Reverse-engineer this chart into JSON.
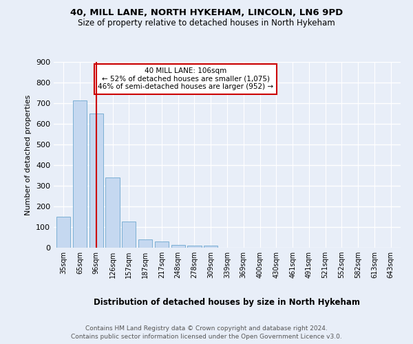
{
  "title1": "40, MILL LANE, NORTH HYKEHAM, LINCOLN, LN6 9PD",
  "title2": "Size of property relative to detached houses in North Hykeham",
  "xlabel": "Distribution of detached houses by size in North Hykeham",
  "ylabel": "Number of detached properties",
  "footer1": "Contains HM Land Registry data © Crown copyright and database right 2024.",
  "footer2": "Contains public sector information licensed under the Open Government Licence v3.0.",
  "annotation_line1": "40 MILL LANE: 106sqm",
  "annotation_line2": "← 52% of detached houses are smaller (1,075)",
  "annotation_line3": "46% of semi-detached houses are larger (952) →",
  "bar_color": "#c5d8f0",
  "bar_edge_color": "#7bafd4",
  "vline_color": "#cc0000",
  "annotation_box_edge": "#cc0000",
  "background_color": "#e8eef8",
  "grid_color": "#ffffff",
  "categories": [
    "35sqm",
    "65sqm",
    "96sqm",
    "126sqm",
    "157sqm",
    "187sqm",
    "217sqm",
    "248sqm",
    "278sqm",
    "309sqm",
    "339sqm",
    "369sqm",
    "400sqm",
    "430sqm",
    "461sqm",
    "491sqm",
    "521sqm",
    "552sqm",
    "582sqm",
    "613sqm",
    "643sqm"
  ],
  "values": [
    150,
    712,
    650,
    340,
    128,
    40,
    30,
    12,
    10,
    10,
    0,
    0,
    0,
    0,
    0,
    0,
    0,
    0,
    0,
    0,
    0
  ],
  "vline_x": 2.0,
  "ylim": [
    0,
    900
  ],
  "yticks": [
    0,
    100,
    200,
    300,
    400,
    500,
    600,
    700,
    800,
    900
  ]
}
